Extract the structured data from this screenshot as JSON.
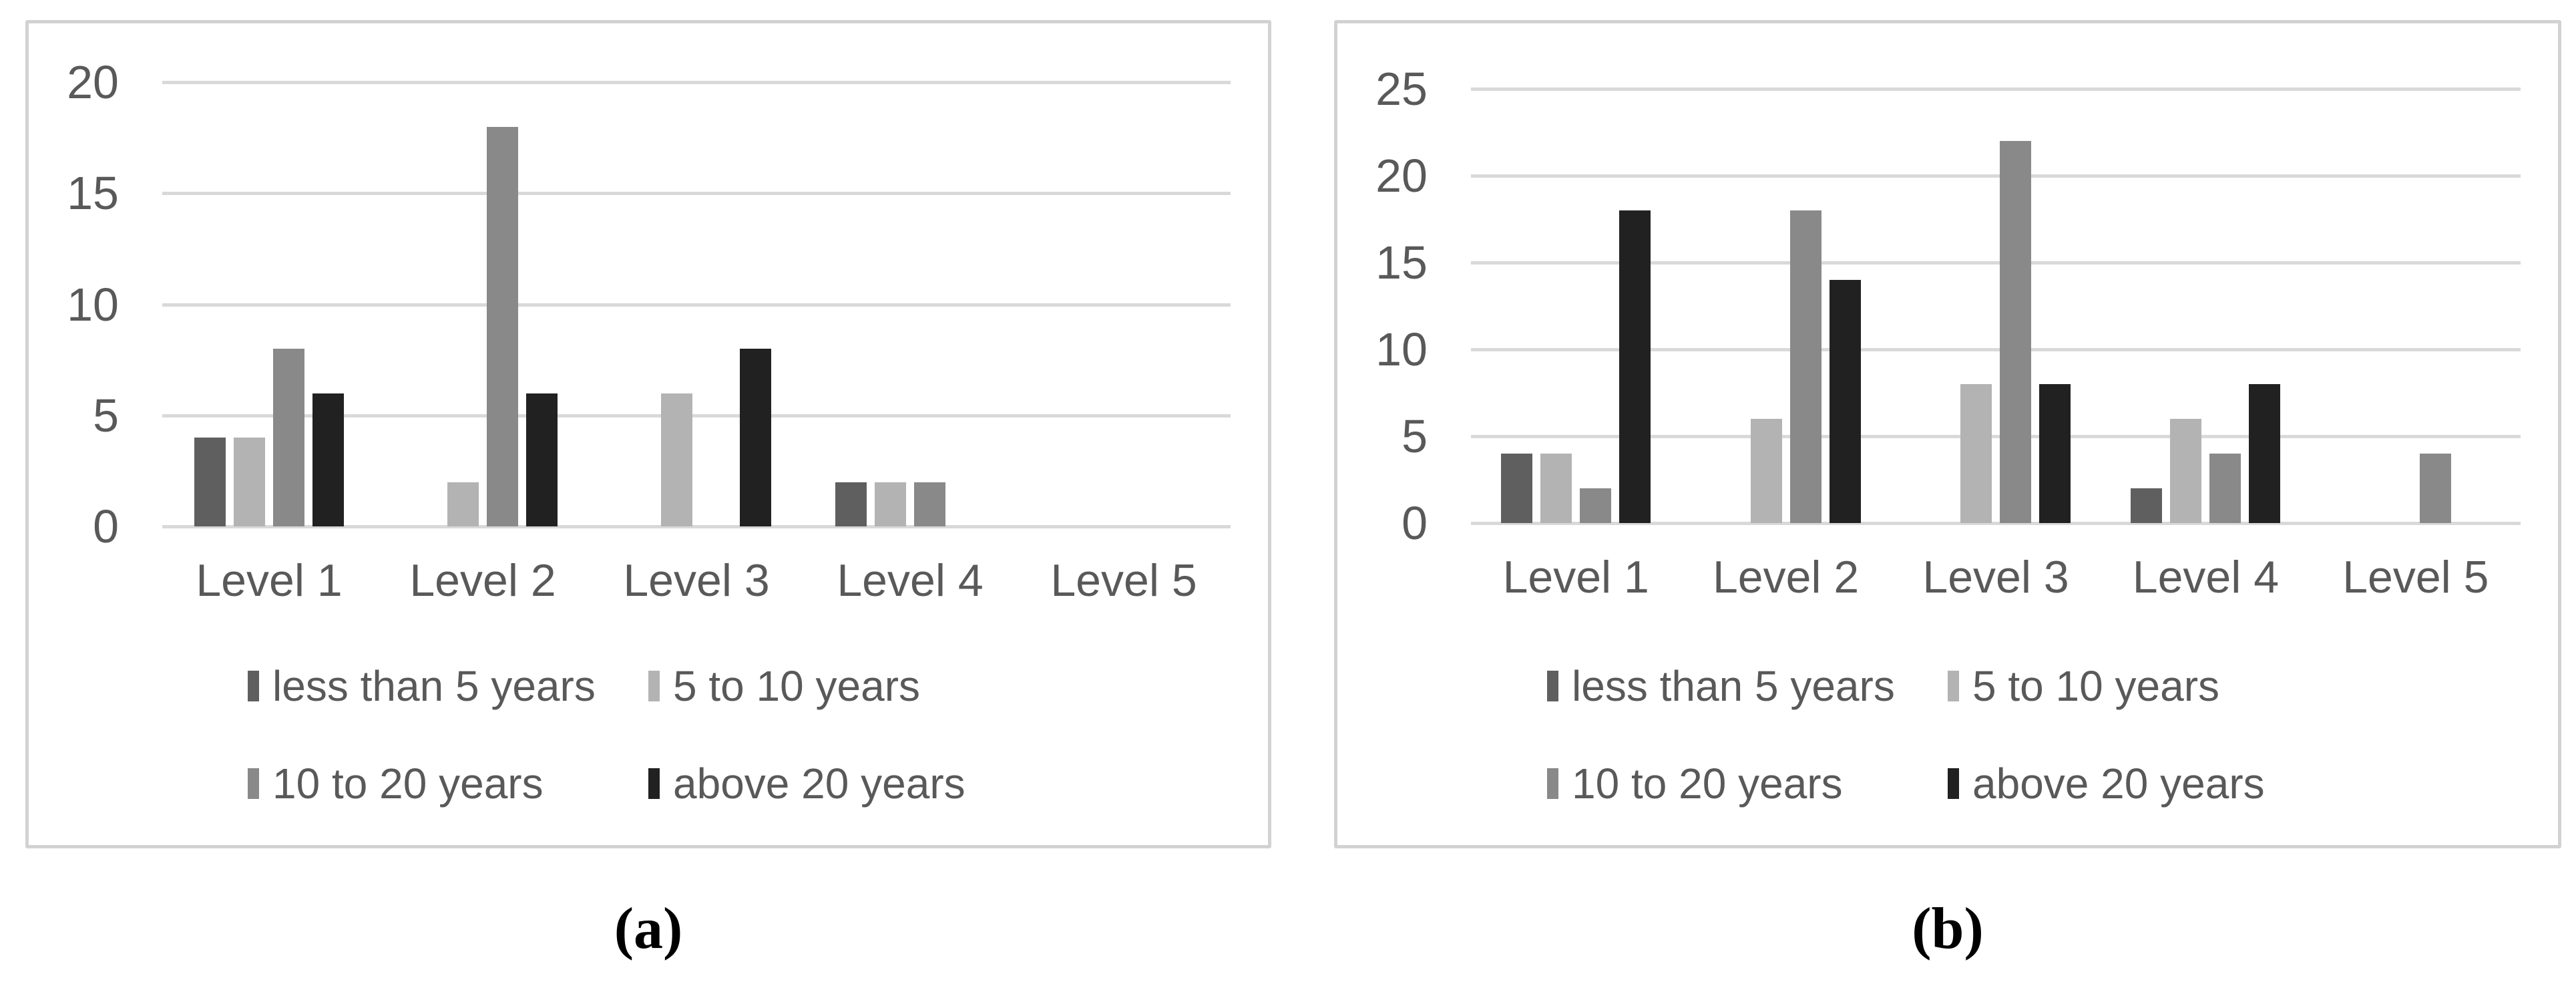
{
  "figure": {
    "background_color": "#ffffff",
    "panel_border_color": "#d2d2d2",
    "gridline_color": "#d9d9d9",
    "axis_text_color": "#595959"
  },
  "chart_data": [
    {
      "id": "a",
      "type": "bar",
      "caption": "(a)",
      "title": "",
      "xlabel": "",
      "ylabel": "",
      "categories": [
        "Level 1",
        "Level 2",
        "Level 3",
        "Level 4",
        "Level 5"
      ],
      "series": [
        {
          "name": "less than 5 years",
          "color": "#5f5f5f",
          "values": [
            4,
            0,
            0,
            2,
            0
          ]
        },
        {
          "name": "5 to 10 years",
          "color": "#b3b3b3",
          "values": [
            4,
            2,
            6,
            2,
            0
          ]
        },
        {
          "name": "10 to 20 years",
          "color": "#898989",
          "values": [
            8,
            18,
            0,
            2,
            0
          ]
        },
        {
          "name": "above 20 years",
          "color": "#212121",
          "values": [
            6,
            6,
            8,
            0,
            0
          ]
        }
      ],
      "ylim": [
        0,
        20
      ],
      "yticks": [
        0,
        5,
        10,
        15,
        20
      ],
      "grid": true,
      "legend_position": "bottom",
      "legend_rows": [
        [
          "less than 5 years",
          "5 to 10 years"
        ],
        [
          "10 to 20 years",
          "above 20 years"
        ]
      ]
    },
    {
      "id": "b",
      "type": "bar",
      "caption": "(b)",
      "title": "",
      "xlabel": "",
      "ylabel": "",
      "categories": [
        "Level 1",
        "Level 2",
        "Level 3",
        "Level 4",
        "Level 5"
      ],
      "series": [
        {
          "name": "less than 5 years",
          "color": "#5f5f5f",
          "values": [
            4,
            0,
            0,
            2,
            0
          ]
        },
        {
          "name": "5 to 10 years",
          "color": "#b3b3b3",
          "values": [
            4,
            6,
            8,
            6,
            0
          ]
        },
        {
          "name": "10 to 20 years",
          "color": "#898989",
          "values": [
            2,
            18,
            22,
            4,
            4
          ]
        },
        {
          "name": "above 20 years",
          "color": "#212121",
          "values": [
            18,
            14,
            8,
            8,
            0
          ]
        }
      ],
      "ylim": [
        0,
        25
      ],
      "yticks": [
        0,
        5,
        10,
        15,
        20,
        25
      ],
      "grid": true,
      "legend_position": "bottom",
      "legend_rows": [
        [
          "less than 5 years",
          "5 to 10 years"
        ],
        [
          "10 to 20 years",
          "above 20 years"
        ]
      ]
    }
  ]
}
